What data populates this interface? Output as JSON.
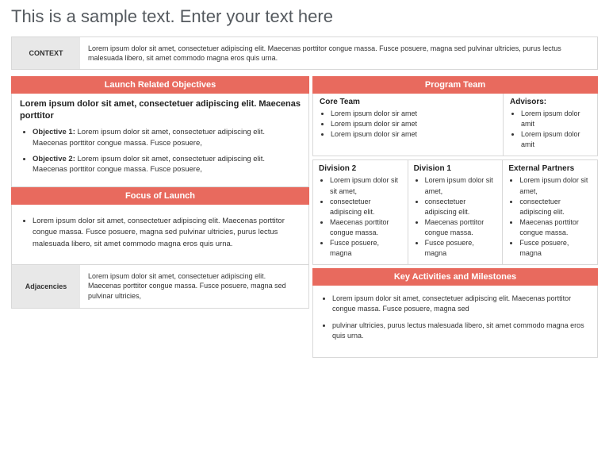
{
  "colors": {
    "accent": "#e86a5e",
    "border": "#d8d8d8",
    "label_bg": "#e8e8e8",
    "text": "#333",
    "title": "#555a5f"
  },
  "title": "This is a sample text. Enter your text here",
  "context": {
    "label": "CONTEXT",
    "body": "Lorem ipsum dolor sit amet, consectetuer adipiscing elit. Maecenas porttitor congue massa. Fusce posuere, magna sed pulvinar ultricies, purus lectus malesuada libero, sit amet commodo magna eros quis urna."
  },
  "launch": {
    "header": "Launch Related Objectives",
    "intro": "Lorem ipsum dolor sit amet, consectetuer adipiscing elit. Maecenas porttitor",
    "items": [
      {
        "label": "Objective 1:",
        "text": " Lorem ipsum dolor sit amet, consectetuer adipiscing elit. Maecenas porttitor congue massa. Fusce posuere,"
      },
      {
        "label": "Objective 2:",
        "text": " Lorem ipsum dolor sit amet, consectetuer adipiscing elit. Maecenas porttitor congue massa. Fusce posuere,"
      }
    ]
  },
  "focus": {
    "header": "Focus of Launch",
    "items": [
      "Lorem ipsum dolor sit amet, consectetuer adipiscing elit. Maecenas porttitor congue massa. Fusce posuere, magna sed pulvinar ultricies, purus lectus malesuada libero, sit amet commodo magna eros quis urna."
    ]
  },
  "adjacencies": {
    "label": "Adjacencies",
    "body": "Lorem ipsum dolor sit amet, consectetuer adipiscing elit. Maecenas porttitor congue massa. Fusce posuere, magna sed pulvinar ultricies,"
  },
  "program": {
    "header": "Program Team",
    "core": {
      "title": "Core Team",
      "items": [
        "Lorem ipsum dolor sir amet",
        "Lorem ipsum dolor sir amet",
        "Lorem ipsum dolor sir amet"
      ]
    },
    "advisors": {
      "title": "Advisors:",
      "items": [
        "Lorem ipsum dolor amit",
        "Lorem ipsum dolor amit"
      ]
    },
    "divisions": [
      {
        "title": "Division 2",
        "items": [
          "Lorem ipsum dolor sit sit amet,",
          "consectetuer adipiscing elit.",
          "Maecenas porttitor congue massa.",
          "Fusce posuere, magna"
        ]
      },
      {
        "title": "Division 1",
        "items": [
          "Lorem ipsum dolor sit amet,",
          "consectetuer adipiscing elit.",
          "Maecenas porttitor congue massa.",
          "Fusce posuere, magna"
        ]
      },
      {
        "title": "External Partners",
        "items": [
          "Lorem ipsum dolor sit amet,",
          "consectetuer adipiscing elit.",
          "Maecenas porttitor congue massa.",
          "Fusce posuere, magna"
        ]
      }
    ]
  },
  "milestones": {
    "header": "Key Activities and Milestones",
    "items": [
      "Lorem ipsum dolor sit amet, consectetuer adipiscing elit. Maecenas porttitor congue massa. Fusce posuere, magna sed",
      "pulvinar ultricies, purus lectus malesuada libero, sit amet commodo magna eros quis urna."
    ]
  }
}
